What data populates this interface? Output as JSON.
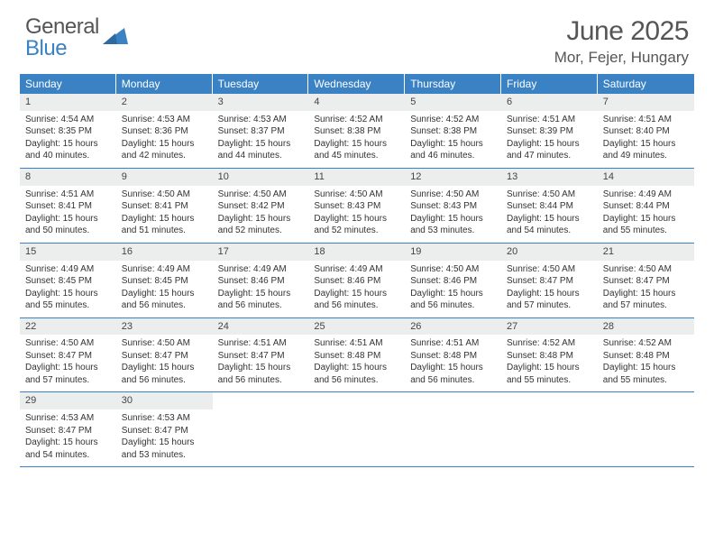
{
  "logo": {
    "word1": "General",
    "word2": "Blue"
  },
  "header": {
    "title": "June 2025",
    "location": "Mor, Fejer, Hungary"
  },
  "colors": {
    "accent": "#3b82c4",
    "header_bg": "#3b82c4",
    "header_text": "#ffffff",
    "daynum_bg": "#eceded",
    "body_text": "#333333",
    "title_text": "#555555"
  },
  "day_names": [
    "Sunday",
    "Monday",
    "Tuesday",
    "Wednesday",
    "Thursday",
    "Friday",
    "Saturday"
  ],
  "weeks": [
    [
      {
        "n": "1",
        "sr": "Sunrise: 4:54 AM",
        "ss": "Sunset: 8:35 PM",
        "dl": "Daylight: 15 hours and 40 minutes."
      },
      {
        "n": "2",
        "sr": "Sunrise: 4:53 AM",
        "ss": "Sunset: 8:36 PM",
        "dl": "Daylight: 15 hours and 42 minutes."
      },
      {
        "n": "3",
        "sr": "Sunrise: 4:53 AM",
        "ss": "Sunset: 8:37 PM",
        "dl": "Daylight: 15 hours and 44 minutes."
      },
      {
        "n": "4",
        "sr": "Sunrise: 4:52 AM",
        "ss": "Sunset: 8:38 PM",
        "dl": "Daylight: 15 hours and 45 minutes."
      },
      {
        "n": "5",
        "sr": "Sunrise: 4:52 AM",
        "ss": "Sunset: 8:38 PM",
        "dl": "Daylight: 15 hours and 46 minutes."
      },
      {
        "n": "6",
        "sr": "Sunrise: 4:51 AM",
        "ss": "Sunset: 8:39 PM",
        "dl": "Daylight: 15 hours and 47 minutes."
      },
      {
        "n": "7",
        "sr": "Sunrise: 4:51 AM",
        "ss": "Sunset: 8:40 PM",
        "dl": "Daylight: 15 hours and 49 minutes."
      }
    ],
    [
      {
        "n": "8",
        "sr": "Sunrise: 4:51 AM",
        "ss": "Sunset: 8:41 PM",
        "dl": "Daylight: 15 hours and 50 minutes."
      },
      {
        "n": "9",
        "sr": "Sunrise: 4:50 AM",
        "ss": "Sunset: 8:41 PM",
        "dl": "Daylight: 15 hours and 51 minutes."
      },
      {
        "n": "10",
        "sr": "Sunrise: 4:50 AM",
        "ss": "Sunset: 8:42 PM",
        "dl": "Daylight: 15 hours and 52 minutes."
      },
      {
        "n": "11",
        "sr": "Sunrise: 4:50 AM",
        "ss": "Sunset: 8:43 PM",
        "dl": "Daylight: 15 hours and 52 minutes."
      },
      {
        "n": "12",
        "sr": "Sunrise: 4:50 AM",
        "ss": "Sunset: 8:43 PM",
        "dl": "Daylight: 15 hours and 53 minutes."
      },
      {
        "n": "13",
        "sr": "Sunrise: 4:50 AM",
        "ss": "Sunset: 8:44 PM",
        "dl": "Daylight: 15 hours and 54 minutes."
      },
      {
        "n": "14",
        "sr": "Sunrise: 4:49 AM",
        "ss": "Sunset: 8:44 PM",
        "dl": "Daylight: 15 hours and 55 minutes."
      }
    ],
    [
      {
        "n": "15",
        "sr": "Sunrise: 4:49 AM",
        "ss": "Sunset: 8:45 PM",
        "dl": "Daylight: 15 hours and 55 minutes."
      },
      {
        "n": "16",
        "sr": "Sunrise: 4:49 AM",
        "ss": "Sunset: 8:45 PM",
        "dl": "Daylight: 15 hours and 56 minutes."
      },
      {
        "n": "17",
        "sr": "Sunrise: 4:49 AM",
        "ss": "Sunset: 8:46 PM",
        "dl": "Daylight: 15 hours and 56 minutes."
      },
      {
        "n": "18",
        "sr": "Sunrise: 4:49 AM",
        "ss": "Sunset: 8:46 PM",
        "dl": "Daylight: 15 hours and 56 minutes."
      },
      {
        "n": "19",
        "sr": "Sunrise: 4:50 AM",
        "ss": "Sunset: 8:46 PM",
        "dl": "Daylight: 15 hours and 56 minutes."
      },
      {
        "n": "20",
        "sr": "Sunrise: 4:50 AM",
        "ss": "Sunset: 8:47 PM",
        "dl": "Daylight: 15 hours and 57 minutes."
      },
      {
        "n": "21",
        "sr": "Sunrise: 4:50 AM",
        "ss": "Sunset: 8:47 PM",
        "dl": "Daylight: 15 hours and 57 minutes."
      }
    ],
    [
      {
        "n": "22",
        "sr": "Sunrise: 4:50 AM",
        "ss": "Sunset: 8:47 PM",
        "dl": "Daylight: 15 hours and 57 minutes."
      },
      {
        "n": "23",
        "sr": "Sunrise: 4:50 AM",
        "ss": "Sunset: 8:47 PM",
        "dl": "Daylight: 15 hours and 56 minutes."
      },
      {
        "n": "24",
        "sr": "Sunrise: 4:51 AM",
        "ss": "Sunset: 8:47 PM",
        "dl": "Daylight: 15 hours and 56 minutes."
      },
      {
        "n": "25",
        "sr": "Sunrise: 4:51 AM",
        "ss": "Sunset: 8:48 PM",
        "dl": "Daylight: 15 hours and 56 minutes."
      },
      {
        "n": "26",
        "sr": "Sunrise: 4:51 AM",
        "ss": "Sunset: 8:48 PM",
        "dl": "Daylight: 15 hours and 56 minutes."
      },
      {
        "n": "27",
        "sr": "Sunrise: 4:52 AM",
        "ss": "Sunset: 8:48 PM",
        "dl": "Daylight: 15 hours and 55 minutes."
      },
      {
        "n": "28",
        "sr": "Sunrise: 4:52 AM",
        "ss": "Sunset: 8:48 PM",
        "dl": "Daylight: 15 hours and 55 minutes."
      }
    ],
    [
      {
        "n": "29",
        "sr": "Sunrise: 4:53 AM",
        "ss": "Sunset: 8:47 PM",
        "dl": "Daylight: 15 hours and 54 minutes."
      },
      {
        "n": "30",
        "sr": "Sunrise: 4:53 AM",
        "ss": "Sunset: 8:47 PM",
        "dl": "Daylight: 15 hours and 53 minutes."
      },
      {
        "empty": true
      },
      {
        "empty": true
      },
      {
        "empty": true
      },
      {
        "empty": true
      },
      {
        "empty": true
      }
    ]
  ]
}
